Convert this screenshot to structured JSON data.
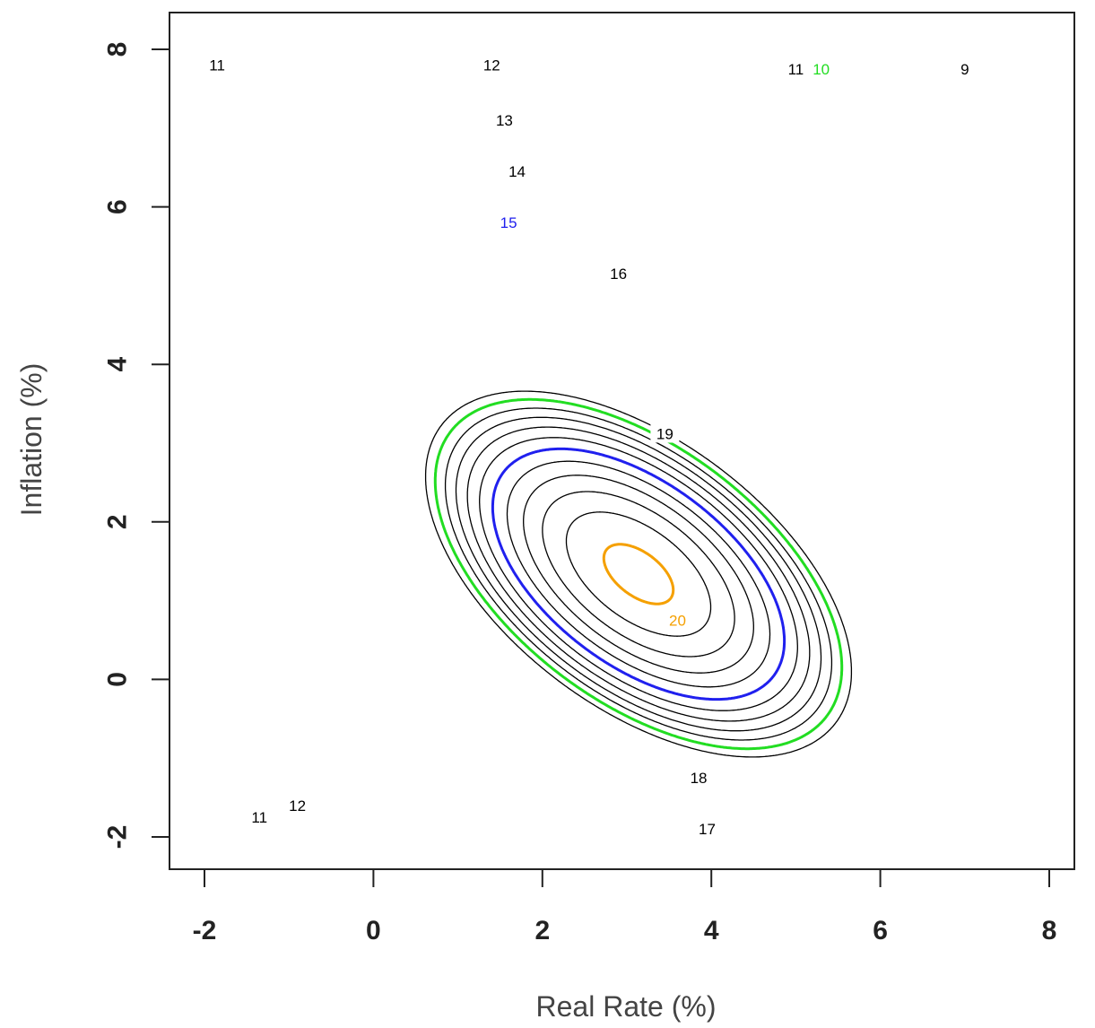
{
  "chart_data": {
    "type": "contour",
    "title": "",
    "xlabel": "Real Rate (%)",
    "ylabel": "Inflation (%)",
    "xlim": [
      -2,
      8
    ],
    "ylim": [
      -2,
      8
    ],
    "x_ticks": [
      "-2",
      "0",
      "2",
      "4",
      "6",
      "8"
    ],
    "y_ticks": [
      "-2",
      "0",
      "2",
      "4",
      "6",
      "8"
    ],
    "grid": false,
    "surface": {
      "form": "elliptic paraboloid",
      "peak": {
        "x": 3.0,
        "y": 1.4,
        "z": 20.3
      }
    },
    "levels": [
      {
        "level": 20,
        "label": "20",
        "color": "#f5a000",
        "highlight": true
      },
      {
        "level": 19,
        "label": "19",
        "color": "#000000",
        "highlight": false
      },
      {
        "level": 18,
        "label": "18",
        "color": "#000000",
        "highlight": false
      },
      {
        "level": 17,
        "label": "17",
        "color": "#000000",
        "highlight": false
      },
      {
        "level": 16,
        "label": "16",
        "color": "#000000",
        "highlight": false
      },
      {
        "level": 15,
        "label": "15",
        "color": "#2020ee",
        "highlight": true
      },
      {
        "level": 14,
        "label": "14",
        "color": "#000000",
        "highlight": false
      },
      {
        "level": 13,
        "label": "13",
        "color": "#000000",
        "highlight": false
      },
      {
        "level": 12,
        "label": "12",
        "color": "#000000",
        "highlight": false
      },
      {
        "level": 11,
        "label": "11",
        "color": "#000000",
        "highlight": false
      },
      {
        "level": 10,
        "label": "10",
        "color": "#22dd22",
        "highlight": true
      },
      {
        "level": 9,
        "label": "9",
        "color": "#000000",
        "highlight": false
      }
    ],
    "level_labels": [
      {
        "text": "20",
        "x": 3.6,
        "y": 0.75,
        "color": "#f5a000"
      },
      {
        "text": "19",
        "x": 3.45,
        "y": 3.12,
        "color": "#000000"
      },
      {
        "text": "18",
        "x": 3.85,
        "y": -1.25,
        "color": "#000000"
      },
      {
        "text": "17",
        "x": 3.95,
        "y": -1.9,
        "color": "#000000"
      },
      {
        "text": "16",
        "x": 2.9,
        "y": 5.15,
        "color": "#000000"
      },
      {
        "text": "15",
        "x": 1.6,
        "y": 5.8,
        "color": "#2020ee"
      },
      {
        "text": "14",
        "x": 1.7,
        "y": 6.45,
        "color": "#000000"
      },
      {
        "text": "13",
        "x": 1.55,
        "y": 7.1,
        "color": "#000000"
      },
      {
        "text": "12",
        "x": 1.4,
        "y": 7.8,
        "color": "#000000"
      },
      {
        "text": "11",
        "x": -1.85,
        "y": 7.8,
        "color": "#000000"
      },
      {
        "text": "11",
        "x": 5.0,
        "y": 7.75,
        "color": "#000000"
      },
      {
        "text": "10",
        "x": 5.3,
        "y": 7.75,
        "color": "#22dd22"
      },
      {
        "text": "9",
        "x": 7.0,
        "y": 7.75,
        "color": "#000000"
      },
      {
        "text": "12",
        "x": -0.9,
        "y": -1.6,
        "color": "#000000"
      },
      {
        "text": "11",
        "x": -1.35,
        "y": -1.75,
        "color": "#000000"
      }
    ]
  }
}
